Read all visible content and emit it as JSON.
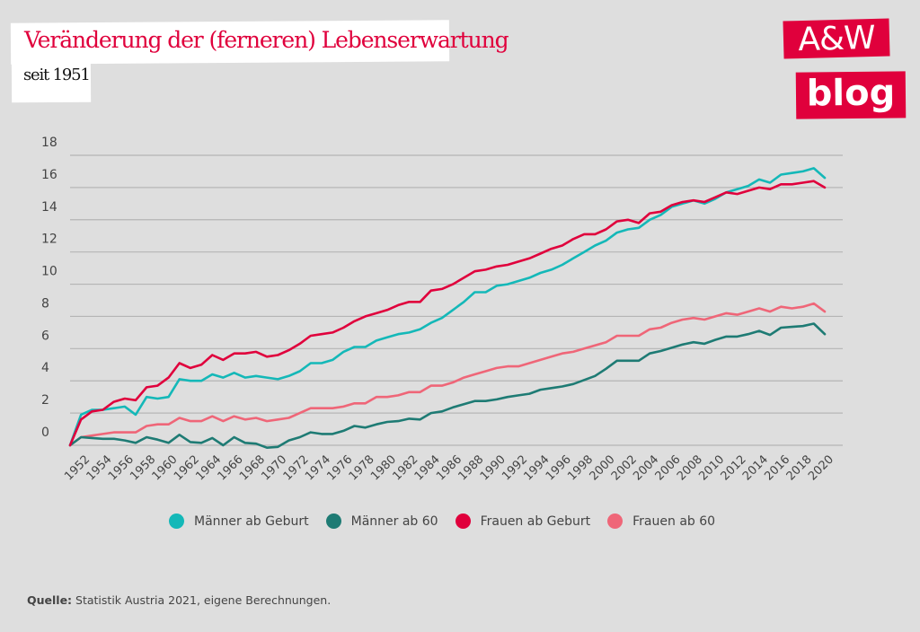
{
  "header": {
    "title": "Veränderung der (ferneren) Lebenserwartung",
    "subtitle": "seit 1951"
  },
  "logo": {
    "line1": "A&W",
    "line2": "blog"
  },
  "colors": {
    "brand": "#e0003c",
    "background": "#dedede",
    "grid": "#b5b5b5"
  },
  "footer": {
    "source_label": "Quelle:",
    "source_text": " Statistik Austria 2021, eigene Berechnungen."
  },
  "chart_data": {
    "type": "line",
    "title": "Veränderung der (ferneren) Lebenserwartung",
    "subtitle": "seit 1951",
    "xlabel": "",
    "ylabel": "",
    "ylim": [
      0,
      18
    ],
    "xlim": [
      1951,
      2020
    ],
    "yticks": [
      0,
      2,
      4,
      6,
      8,
      10,
      12,
      14,
      16,
      18
    ],
    "xtick_labels": [
      "1952",
      "1954",
      "1956",
      "1958",
      "1960",
      "1962",
      "1964",
      "1966",
      "1968",
      "1970",
      "1972",
      "1974",
      "1976",
      "1978",
      "1980",
      "1982",
      "1984",
      "1986",
      "1988",
      "1990",
      "1992",
      "1994",
      "1996",
      "1998",
      "2000",
      "2002",
      "2004",
      "2006",
      "2008",
      "2010",
      "2012",
      "2014",
      "2016",
      "2018",
      "2020"
    ],
    "grid": true,
    "legend_position": "bottom",
    "x": [
      1951,
      1952,
      1953,
      1954,
      1955,
      1956,
      1957,
      1958,
      1959,
      1960,
      1961,
      1962,
      1963,
      1964,
      1965,
      1966,
      1967,
      1968,
      1969,
      1970,
      1971,
      1972,
      1973,
      1974,
      1975,
      1976,
      1977,
      1978,
      1979,
      1980,
      1981,
      1982,
      1983,
      1984,
      1985,
      1986,
      1987,
      1988,
      1989,
      1990,
      1991,
      1992,
      1993,
      1994,
      1995,
      1996,
      1997,
      1998,
      1999,
      2000,
      2001,
      2002,
      2003,
      2004,
      2005,
      2006,
      2007,
      2008,
      2009,
      2010,
      2011,
      2012,
      2013,
      2014,
      2015,
      2016,
      2017,
      2018,
      2019,
      2020
    ],
    "series": [
      {
        "name": "Männer ab Geburt",
        "color": "#14b8b8",
        "values": [
          0,
          1.9,
          2.2,
          2.2,
          2.3,
          2.4,
          1.9,
          3.0,
          2.9,
          3.0,
          4.1,
          4.0,
          4.0,
          4.4,
          4.2,
          4.5,
          4.2,
          4.3,
          4.2,
          4.1,
          4.3,
          4.6,
          5.1,
          5.1,
          5.3,
          5.8,
          6.1,
          6.1,
          6.5,
          6.7,
          6.9,
          7.0,
          7.2,
          7.6,
          7.9,
          8.4,
          8.9,
          9.5,
          9.5,
          9.9,
          10.0,
          10.2,
          10.4,
          10.7,
          10.9,
          11.2,
          11.6,
          12.0,
          12.4,
          12.7,
          13.2,
          13.4,
          13.5,
          14.0,
          14.3,
          14.8,
          15.0,
          15.2,
          15.0,
          15.3,
          15.7,
          15.9,
          16.1,
          16.5,
          16.3,
          16.8,
          16.9,
          17.0,
          17.2,
          16.6
        ]
      },
      {
        "name": "Männer ab 60",
        "color": "#1e7b74",
        "values": [
          0,
          0.5,
          0.45,
          0.4,
          0.4,
          0.3,
          0.15,
          0.5,
          0.35,
          0.15,
          0.65,
          0.2,
          0.15,
          0.45,
          0.0,
          0.5,
          0.15,
          0.1,
          -0.15,
          -0.1,
          0.3,
          0.5,
          0.8,
          0.7,
          0.7,
          0.9,
          1.2,
          1.1,
          1.3,
          1.45,
          1.5,
          1.65,
          1.6,
          2.0,
          2.1,
          2.35,
          2.55,
          2.75,
          2.75,
          2.85,
          3.0,
          3.1,
          3.2,
          3.45,
          3.55,
          3.65,
          3.8,
          4.05,
          4.3,
          4.75,
          5.25,
          5.25,
          5.25,
          5.7,
          5.85,
          6.05,
          6.25,
          6.4,
          6.3,
          6.55,
          6.75,
          6.75,
          6.9,
          7.1,
          6.85,
          7.3,
          7.35,
          7.4,
          7.55,
          6.9
        ]
      },
      {
        "name": "Frauen ab Geburt",
        "color": "#e0003c",
        "values": [
          0,
          1.6,
          2.1,
          2.2,
          2.7,
          2.9,
          2.8,
          3.6,
          3.7,
          4.2,
          5.1,
          4.8,
          5.0,
          5.6,
          5.3,
          5.7,
          5.7,
          5.8,
          5.5,
          5.6,
          5.9,
          6.3,
          6.8,
          6.9,
          7.0,
          7.3,
          7.7,
          8.0,
          8.2,
          8.4,
          8.7,
          8.9,
          8.9,
          9.6,
          9.7,
          10.0,
          10.4,
          10.8,
          10.9,
          11.1,
          11.2,
          11.4,
          11.6,
          11.9,
          12.2,
          12.4,
          12.8,
          13.1,
          13.1,
          13.4,
          13.9,
          14.0,
          13.8,
          14.4,
          14.5,
          14.9,
          15.1,
          15.2,
          15.1,
          15.4,
          15.7,
          15.6,
          15.8,
          16.0,
          15.9,
          16.2,
          16.2,
          16.3,
          16.4,
          16.0
        ]
      },
      {
        "name": "Frauen ab 60",
        "color": "#ef6678",
        "values": [
          0,
          0.5,
          0.6,
          0.7,
          0.8,
          0.8,
          0.8,
          1.2,
          1.3,
          1.3,
          1.7,
          1.5,
          1.5,
          1.8,
          1.5,
          1.8,
          1.6,
          1.7,
          1.5,
          1.6,
          1.7,
          2.0,
          2.3,
          2.3,
          2.3,
          2.4,
          2.6,
          2.6,
          3.0,
          3.0,
          3.1,
          3.3,
          3.3,
          3.7,
          3.7,
          3.9,
          4.2,
          4.4,
          4.6,
          4.8,
          4.9,
          4.9,
          5.1,
          5.3,
          5.5,
          5.7,
          5.8,
          6.0,
          6.2,
          6.4,
          6.8,
          6.8,
          6.8,
          7.2,
          7.3,
          7.6,
          7.8,
          7.9,
          7.8,
          8.0,
          8.2,
          8.1,
          8.3,
          8.5,
          8.3,
          8.6,
          8.5,
          8.6,
          8.8,
          8.3
        ]
      }
    ]
  }
}
